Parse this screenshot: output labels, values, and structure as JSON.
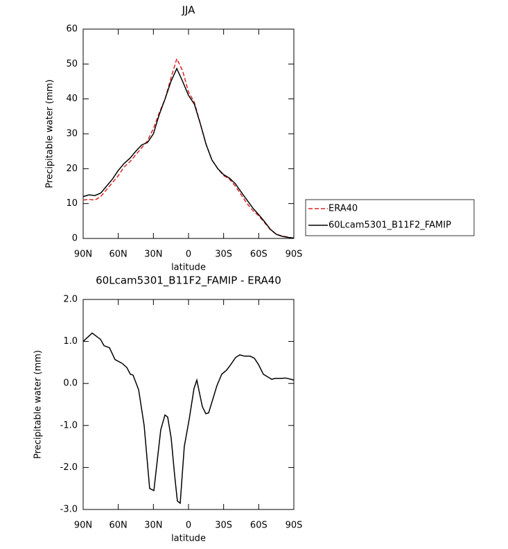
{
  "chart_data": [
    {
      "type": "line",
      "title": "JJA",
      "xlabel": "latitude",
      "ylabel": "Precipitable water  (mm)",
      "x": [
        90,
        85,
        80,
        75,
        70,
        65,
        60,
        55,
        50,
        45,
        40,
        35,
        30,
        25,
        20,
        15,
        10,
        5,
        0,
        -5,
        -10,
        -15,
        -20,
        -25,
        -30,
        -35,
        -40,
        -45,
        -50,
        -55,
        -60,
        -65,
        -70,
        -75,
        -80,
        -85,
        -90
      ],
      "series": [
        {
          "name": "ERA40",
          "color": "#dd2222",
          "dashed": true,
          "values": [
            11,
            11.2,
            11,
            12,
            14,
            16,
            18,
            20.5,
            22,
            24,
            26,
            28,
            31.5,
            36,
            40,
            46,
            51.5,
            48,
            42,
            39,
            33,
            27,
            22.5,
            20,
            18,
            17,
            15,
            12.5,
            10,
            8,
            6.5,
            4.5,
            2.5,
            1.2,
            0.7,
            0.4,
            0.1
          ]
        },
        {
          "name": "60Lcam5301_B11F2_FAMIP",
          "color": "#000000",
          "dashed": false,
          "values": [
            12,
            12.5,
            12.3,
            13,
            15,
            17,
            19.5,
            21.5,
            23,
            25,
            26.8,
            27.5,
            30,
            35.5,
            40,
            45,
            48.7,
            45,
            41,
            38.5,
            33,
            27,
            22.5,
            20,
            18.3,
            17.3,
            15.7,
            13.3,
            11,
            8.7,
            6.8,
            4.8,
            2.6,
            1.2,
            0.6,
            0.3,
            0.1
          ]
        }
      ],
      "xlim": [
        90,
        -90
      ],
      "xticks": [
        {
          "value": 90,
          "label": "90N"
        },
        {
          "value": 60,
          "label": "60N"
        },
        {
          "value": 30,
          "label": "30N"
        },
        0,
        {
          "value": -30,
          "label": "30S"
        },
        {
          "value": -60,
          "label": "60S"
        },
        {
          "value": -90,
          "label": "90S"
        }
      ],
      "ylim": [
        0,
        60
      ],
      "yticks": [
        0,
        10,
        20,
        30,
        40,
        50,
        60
      ],
      "legend": "right"
    },
    {
      "type": "line",
      "title": "60Lcam5301_B11F2_FAMIP - ERA40",
      "xlabel": "latitude",
      "ylabel": "Precipitable water  (mm)",
      "x": [
        90,
        82.3,
        75.2,
        72.2,
        67.5,
        62.8,
        56.8,
        52.7,
        49.7,
        47.4,
        42.6,
        37.9,
        33.2,
        29.6,
        23.7,
        20.1,
        17.8,
        14.8,
        11.8,
        9.5,
        7.1,
        3.6,
        -0.6,
        -4.7,
        -7.1,
        -11.8,
        -14.8,
        -17.2,
        -20.7,
        -24.3,
        -28.4,
        -32.6,
        -36.1,
        -40.3,
        -43.8,
        -48.0,
        -52.7,
        -56.3,
        -59.8,
        -63.9,
        -68.1,
        -71.1,
        -74.0,
        -78.7,
        -82.9,
        -87.6,
        -90
      ],
      "series": [
        {
          "name": "60Lcam5301_B11F2_FAMIP - ERA40",
          "color": "#000000",
          "dashed": false,
          "values": [
            1.0,
            1.2,
            1.05,
            0.9,
            0.85,
            0.57,
            0.48,
            0.38,
            0.22,
            0.2,
            -0.15,
            -1.0,
            -2.5,
            -2.55,
            -1.1,
            -0.75,
            -0.8,
            -1.3,
            -2.2,
            -2.8,
            -2.85,
            -1.5,
            -0.85,
            -0.12,
            0.08,
            -0.55,
            -0.72,
            -0.7,
            -0.38,
            -0.05,
            0.22,
            0.32,
            0.45,
            0.62,
            0.68,
            0.65,
            0.65,
            0.6,
            0.45,
            0.22,
            0.15,
            0.1,
            0.12,
            0.12,
            0.13,
            0.1,
            0.08
          ]
        }
      ],
      "xlim": [
        90,
        -90
      ],
      "xticks": [
        {
          "value": 90,
          "label": "90N"
        },
        {
          "value": 60,
          "label": "60N"
        },
        {
          "value": 30,
          "label": "30N"
        },
        0,
        {
          "value": -30,
          "label": "30S"
        },
        {
          "value": -60,
          "label": "60S"
        },
        {
          "value": -90,
          "label": "90S"
        }
      ],
      "ylim": [
        -3,
        2
      ],
      "yticks": [
        {
          "value": -3,
          "label": "-3.0"
        },
        {
          "value": -2,
          "label": "-2.0"
        },
        {
          "value": -1,
          "label": "-1.0"
        },
        {
          "value": 0,
          "label": "0.0"
        },
        {
          "value": 1,
          "label": "1.0"
        },
        {
          "value": 2,
          "label": "2.0"
        }
      ]
    }
  ]
}
